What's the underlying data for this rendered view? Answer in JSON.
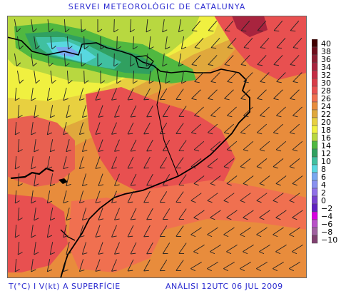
{
  "header": {
    "title": "SERVEI METEOROLÒGIC DE CATALUNYA"
  },
  "footer": {
    "variable": "T(°C) I V(kt) A SUPERFÍCIE",
    "analysis": "ANÀLISI 12UTC 06 JUL 2009"
  },
  "legend": {
    "labels": [
      "40",
      "38",
      "36",
      "34",
      "32",
      "30",
      "28",
      "26",
      "24",
      "22",
      "20",
      "18",
      "16",
      "14",
      "12",
      "10",
      "8",
      "6",
      "4",
      "2",
      "0",
      "−2",
      "−4",
      "−6",
      "−8",
      "−10"
    ],
    "colors": [
      "#400000",
      "#6e0e1c",
      "#8c1e32",
      "#a8243e",
      "#c42c44",
      "#d83c48",
      "#e85050",
      "#f07050",
      "#e88c3c",
      "#e0a83c",
      "#e8d040",
      "#f0f040",
      "#b8d840",
      "#50b840",
      "#30a060",
      "#40c0a0",
      "#58d8e0",
      "#78a8f0",
      "#8890f0",
      "#9070e8",
      "#7840d0",
      "#6020c0",
      "#d800e0",
      "#b850c8",
      "#a060a0",
      "#804070"
    ]
  }
}
